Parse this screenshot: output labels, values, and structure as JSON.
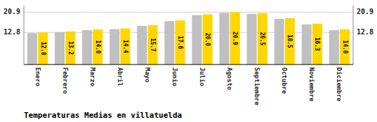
{
  "chart_data": {
    "type": "bar",
    "title": "Temperaturas Medias en villatuelda",
    "categories": [
      "Enero",
      "Febrero",
      "Marzo",
      "Abril",
      "Mayo",
      "Junio",
      "Julio",
      "Agosto",
      "Septiembre",
      "Octubre",
      "Noviembre",
      "Diciembre"
    ],
    "series": [
      {
        "color": "#C0C0C0",
        "values": [
          12.5,
          12.9,
          13.7,
          14.1,
          15.4,
          17.3,
          19.7,
          20.6,
          20.2,
          18.2,
          16.0,
          13.7
        ]
      },
      {
        "color": "#FFD700",
        "values": [
          12.8,
          13.2,
          14.0,
          14.4,
          15.7,
          17.6,
          20.0,
          20.9,
          20.5,
          18.5,
          16.3,
          14.0
        ],
        "value_labels": [
          "12.8",
          "13.2",
          "14.0",
          "14.4",
          "15.7",
          "17.6",
          "20.0",
          "20.9",
          "20.5",
          "18.5",
          "16.3",
          "14.0"
        ],
        "data_labels": true
      }
    ],
    "ylim": [
      0,
      23.5
    ],
    "yticks": [
      12.8,
      20.9
    ],
    "grid": true
  }
}
